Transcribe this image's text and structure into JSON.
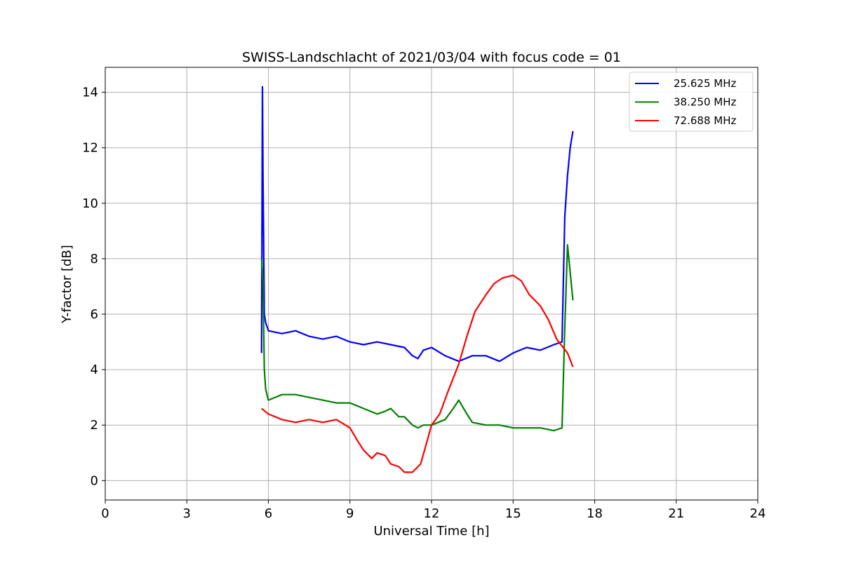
{
  "chart_data": {
    "type": "line",
    "title": "SWISS-Landschlacht of 2021/03/04 with focus code = 01",
    "xlabel": "Universal Time [h]",
    "ylabel": "Y-factor [dB]",
    "xlim": [
      0,
      24
    ],
    "ylim": [
      -0.7,
      14.9
    ],
    "xticks": [
      0,
      3,
      6,
      9,
      12,
      15,
      18,
      21,
      24
    ],
    "yticks": [
      0,
      2,
      4,
      6,
      8,
      10,
      12,
      14
    ],
    "grid": true,
    "legend_position": "top-right",
    "series": [
      {
        "name": "25.625 MHz",
        "color": "#0000ff",
        "x": [
          5.75,
          5.78,
          5.8,
          5.85,
          5.9,
          6.0,
          6.5,
          7.0,
          7.5,
          8.0,
          8.5,
          9.0,
          9.5,
          10.0,
          10.5,
          11.0,
          11.3,
          11.5,
          11.7,
          12.0,
          12.5,
          13.0,
          13.5,
          14.0,
          14.5,
          15.0,
          15.5,
          16.0,
          16.5,
          16.8,
          16.9,
          17.0,
          17.1,
          17.2
        ],
        "y": [
          4.6,
          14.2,
          11.0,
          6.0,
          5.7,
          5.4,
          5.3,
          5.4,
          5.2,
          5.1,
          5.2,
          5.0,
          4.9,
          5.0,
          4.9,
          4.8,
          4.5,
          4.4,
          4.7,
          4.8,
          4.5,
          4.3,
          4.5,
          4.5,
          4.3,
          4.6,
          4.8,
          4.7,
          4.9,
          5.0,
          9.5,
          11.0,
          12.0,
          12.6
        ]
      },
      {
        "name": "38.250 MHz",
        "color": "#008000",
        "x": [
          5.75,
          5.8,
          5.85,
          5.9,
          6.0,
          6.5,
          7.0,
          7.5,
          8.0,
          8.5,
          9.0,
          9.5,
          10.0,
          10.3,
          10.5,
          10.8,
          11.0,
          11.3,
          11.5,
          11.7,
          12.0,
          12.5,
          12.8,
          13.0,
          13.3,
          13.5,
          14.0,
          14.5,
          15.0,
          15.5,
          16.0,
          16.5,
          16.8,
          16.9,
          17.0,
          17.2
        ],
        "y": [
          8.0,
          7.2,
          4.0,
          3.3,
          2.9,
          3.1,
          3.1,
          3.0,
          2.9,
          2.8,
          2.8,
          2.6,
          2.4,
          2.5,
          2.6,
          2.3,
          2.3,
          2.0,
          1.9,
          2.0,
          2.0,
          2.2,
          2.6,
          2.9,
          2.4,
          2.1,
          2.0,
          2.0,
          1.9,
          1.9,
          1.9,
          1.8,
          1.9,
          5.5,
          8.5,
          6.5
        ]
      },
      {
        "name": "72.688 MHz",
        "color": "#ff0000",
        "x": [
          5.75,
          6.0,
          6.5,
          7.0,
          7.5,
          8.0,
          8.5,
          9.0,
          9.3,
          9.5,
          9.8,
          10.0,
          10.3,
          10.5,
          10.8,
          11.0,
          11.3,
          11.6,
          11.8,
          12.0,
          12.3,
          12.6,
          13.0,
          13.3,
          13.6,
          14.0,
          14.3,
          14.6,
          15.0,
          15.3,
          15.6,
          16.0,
          16.3,
          16.6,
          17.0,
          17.2
        ],
        "y": [
          2.6,
          2.4,
          2.2,
          2.1,
          2.2,
          2.1,
          2.2,
          1.9,
          1.4,
          1.1,
          0.8,
          1.0,
          0.9,
          0.6,
          0.5,
          0.3,
          0.3,
          0.6,
          1.3,
          2.0,
          2.4,
          3.2,
          4.2,
          5.2,
          6.1,
          6.7,
          7.1,
          7.3,
          7.4,
          7.2,
          6.7,
          6.3,
          5.8,
          5.1,
          4.6,
          4.1
        ]
      }
    ]
  }
}
